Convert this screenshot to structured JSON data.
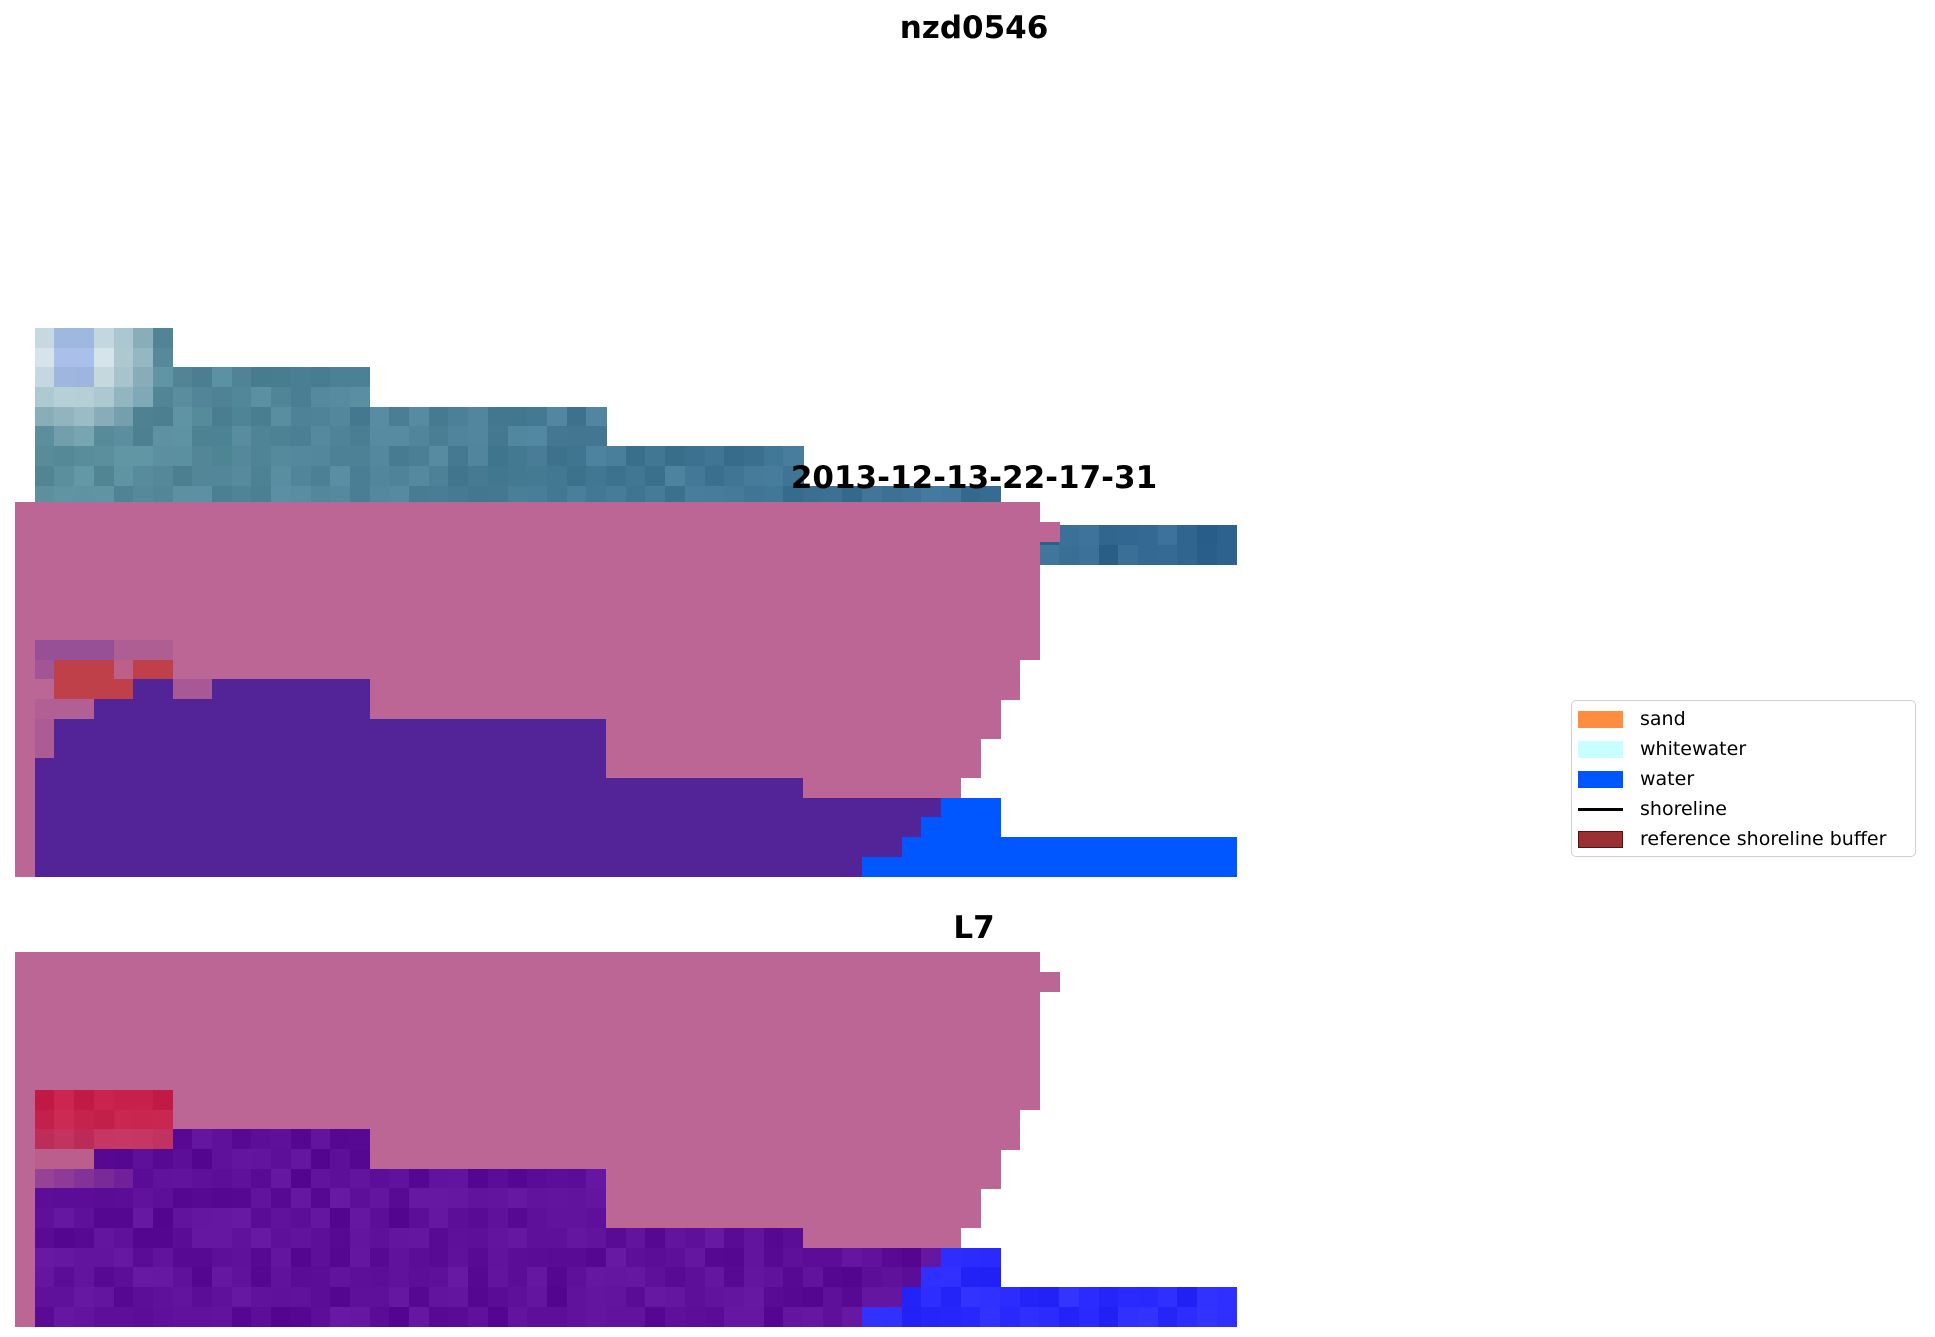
{
  "titles": {
    "top": "nzd0546",
    "middle": "2013-12-13-22-17-31",
    "bottom": "L7"
  },
  "legend": {
    "items": [
      {
        "label": "sand",
        "color": "#ff8c3f",
        "kind": "patch"
      },
      {
        "label": "whitewater",
        "color": "#c8ffff",
        "kind": "patch"
      },
      {
        "label": "water",
        "color": "#0055ff",
        "kind": "patch"
      },
      {
        "label": "shoreline",
        "color": "#000000",
        "kind": "line"
      },
      {
        "label": "reference shoreline buffer",
        "color": "#9b3032",
        "kind": "patch",
        "edge": "#5a1010"
      }
    ]
  },
  "colors": {
    "land_overlay": "#bb6694",
    "water_overlay": "#532398",
    "water": "#0057ff",
    "buffer_overlay": "#c0404a"
  }
}
